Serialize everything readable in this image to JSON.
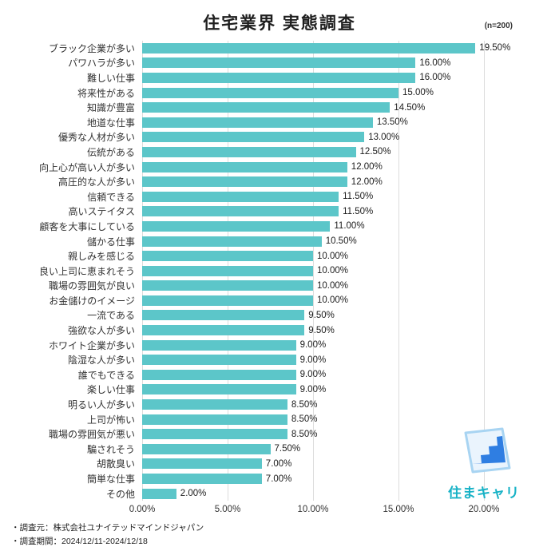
{
  "header": {
    "title": "住宅業界 実態調査",
    "sample_size": "(n=200)"
  },
  "chart_data": {
    "type": "bar",
    "orientation": "horizontal",
    "title": "住宅業界 実態調査",
    "xlabel": "",
    "ylabel": "",
    "xlim": [
      0,
      20
    ],
    "grid": true,
    "bar_color": "#5cc6c9",
    "x_ticks": [
      "0.00%",
      "5.00%",
      "10.00%",
      "15.00%",
      "20.00%"
    ],
    "categories": [
      "ブラック企業が多い",
      "パワハラが多い",
      "難しい仕事",
      "将来性がある",
      "知識が豊富",
      "地道な仕事",
      "優秀な人材が多い",
      "伝統がある",
      "向上心が高い人が多い",
      "高圧的な人が多い",
      "信頼できる",
      "高いステイタス",
      "顧客を大事にしている",
      "儲かる仕事",
      "親しみを感じる",
      "良い上司に恵まれそう",
      "職場の雰囲気が良い",
      "お金儲けのイメージ",
      "一流である",
      "強欲な人が多い",
      "ホワイト企業が多い",
      "陰湿な人が多い",
      "誰でもできる",
      "楽しい仕事",
      "明るい人が多い",
      "上司が怖い",
      "職場の雰囲気が悪い",
      "騙されそう",
      "胡散臭い",
      "簡単な仕事",
      "その他"
    ],
    "values": [
      19.5,
      16,
      16,
      15,
      14.5,
      13.5,
      13,
      12.5,
      12,
      12,
      11.5,
      11.5,
      11,
      10.5,
      10,
      10,
      10,
      10,
      9.5,
      9.5,
      9,
      9,
      9,
      9,
      8.5,
      8.5,
      8.5,
      7.5,
      7,
      7,
      2
    ]
  },
  "footer": {
    "note1": "・調査元：株式会社ユナイテッドマインドジャパン",
    "note2": "・調査期間：2024/12/11-2024/12/18"
  },
  "logo": {
    "text": "住まキャリ",
    "text_color": "#17b2c6",
    "icon_fill": "#eaf4fd",
    "icon_outline": "#a8d4f2",
    "stairs_color": "#2f7ee2"
  }
}
